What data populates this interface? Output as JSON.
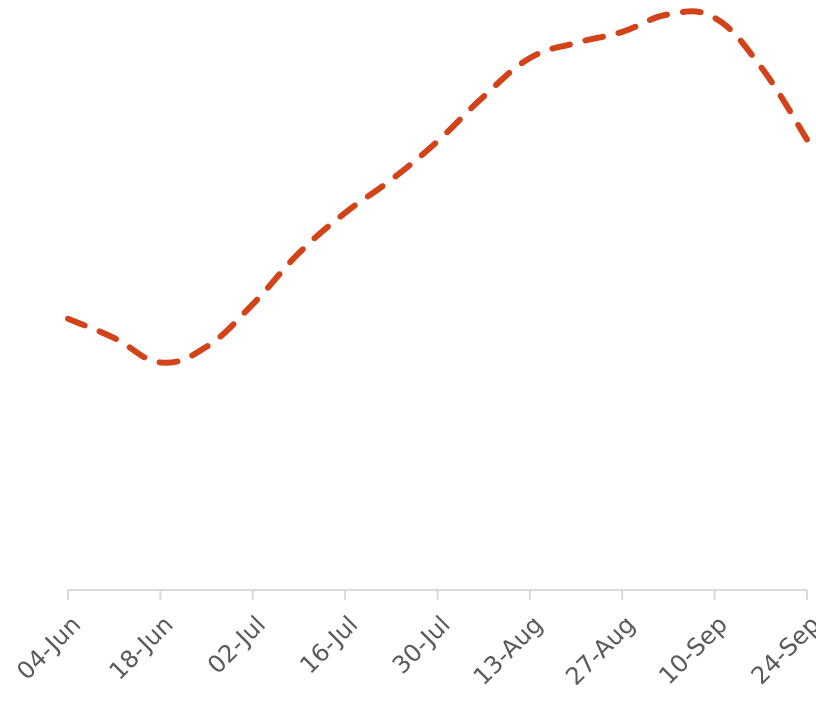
{
  "chart_data": {
    "type": "line",
    "title": "",
    "xlabel": "",
    "ylabel": "",
    "x": [
      "04-Jun",
      "11-Jun",
      "18-Jun",
      "25-Jun",
      "02-Jul",
      "09-Jul",
      "16-Jul",
      "23-Jul",
      "30-Jul",
      "06-Aug",
      "13-Aug",
      "20-Aug",
      "27-Aug",
      "03-Sep",
      "10-Sep",
      "17-Sep",
      "24-Sep"
    ],
    "xticks": [
      "04-Jun",
      "18-Jun",
      "02-Jul",
      "16-Jul",
      "30-Jul",
      "13-Aug",
      "27-Aug",
      "10-Sep",
      "24-Sep"
    ],
    "series": [
      {
        "values": [
          46.6,
          43.3,
          39.1,
          41.8,
          49.1,
          57.9,
          64.8,
          70.5,
          77.1,
          84.8,
          91.4,
          94.0,
          95.9,
          98.9,
          98.3,
          89.9,
          77.4
        ],
        "color": "#d24319",
        "dash": "dashed"
      }
    ],
    "ylim": [
      0,
      100
    ],
    "grid": false,
    "legend": "none",
    "axis_color": "#d9d9d9",
    "tick_label_color": "#595959"
  }
}
